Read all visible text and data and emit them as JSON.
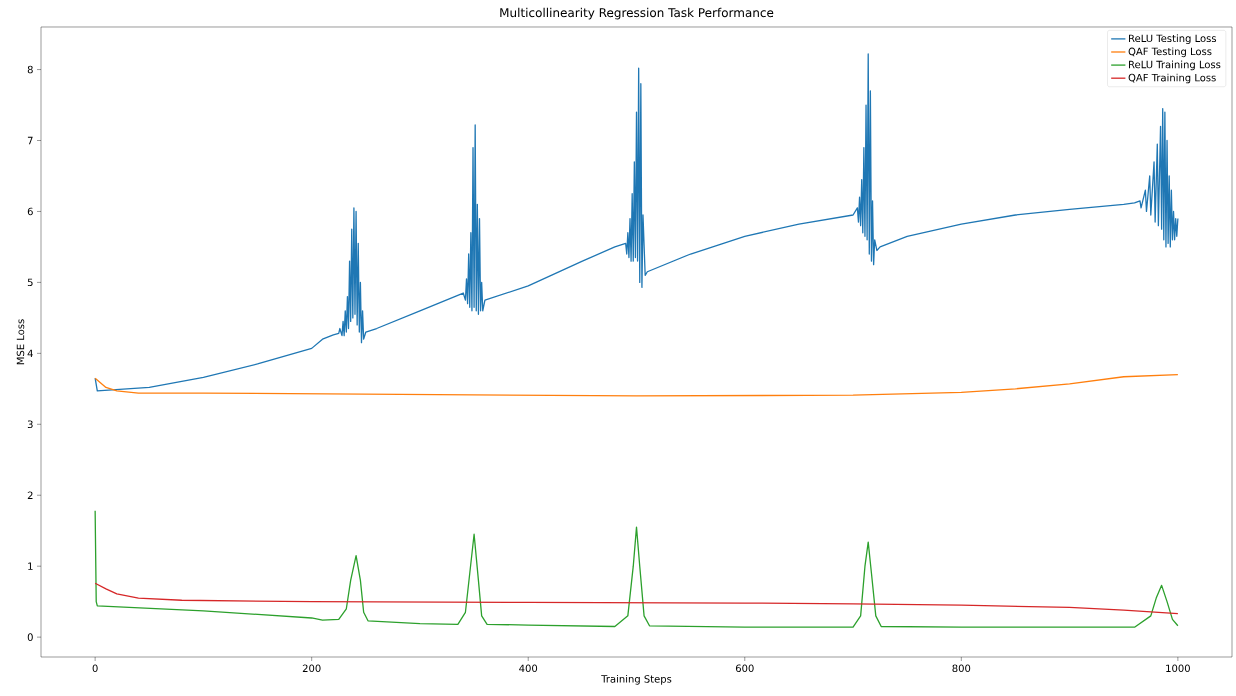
{
  "chart_data": {
    "type": "line",
    "title": "Multicollinearity Regression Task Performance",
    "xlabel": "Training Steps",
    "ylabel": "MSE Loss",
    "xlim": [
      -50,
      1050
    ],
    "ylim": [
      -0.28,
      8.6
    ],
    "xticks": [
      0,
      200,
      400,
      600,
      800,
      1000
    ],
    "yticks": [
      0,
      1,
      2,
      3,
      4,
      5,
      6,
      7,
      8
    ],
    "legend": "top right",
    "grid": false,
    "series": [
      {
        "name": "ReLU Testing Loss",
        "color": "#1f77b4",
        "x": [
          0,
          2,
          50,
          100,
          150,
          200,
          210,
          220,
          225,
          226,
          228,
          229,
          230,
          231,
          232,
          233,
          234,
          235,
          236,
          237,
          238,
          239,
          240,
          241,
          242,
          243,
          244,
          245,
          246,
          247,
          248,
          250,
          260,
          300,
          340,
          342,
          343,
          344,
          345,
          346,
          347,
          348,
          349,
          350,
          351,
          352,
          353,
          354,
          355,
          356,
          357,
          358,
          360,
          400,
          450,
          480,
          490,
          491,
          492,
          493,
          494,
          495,
          496,
          497,
          498,
          499,
          500,
          501,
          502,
          503,
          504,
          505,
          506,
          508,
          510,
          550,
          600,
          650,
          700,
          704,
          705,
          706,
          707,
          708,
          709,
          710,
          711,
          712,
          713,
          714,
          715,
          716,
          717,
          718,
          719,
          720,
          722,
          725,
          750,
          800,
          850,
          900,
          950,
          960,
          965,
          966,
          970,
          971,
          974,
          975,
          978,
          979,
          981,
          982,
          984,
          985,
          986,
          987,
          988,
          989,
          990,
          991,
          992,
          993,
          994,
          995,
          996,
          997,
          998,
          999,
          1000
        ],
        "values": [
          3.65,
          3.47,
          3.52,
          3.66,
          3.85,
          4.07,
          4.2,
          4.26,
          4.28,
          4.35,
          4.25,
          4.45,
          4.25,
          4.6,
          4.3,
          4.8,
          4.35,
          5.3,
          4.45,
          5.75,
          4.5,
          6.05,
          4.55,
          6.0,
          4.4,
          5.55,
          4.3,
          5.0,
          4.15,
          4.6,
          4.2,
          4.3,
          4.35,
          4.6,
          4.85,
          4.75,
          5.05,
          4.7,
          5.4,
          4.65,
          5.7,
          4.6,
          6.9,
          4.65,
          7.22,
          4.6,
          6.1,
          4.55,
          5.9,
          4.6,
          5.0,
          4.6,
          4.75,
          4.95,
          5.3,
          5.5,
          5.55,
          5.4,
          5.7,
          5.35,
          5.9,
          5.3,
          6.25,
          5.3,
          6.7,
          5.35,
          7.4,
          5.3,
          8.02,
          5.0,
          7.8,
          4.93,
          5.95,
          5.1,
          5.15,
          5.4,
          5.65,
          5.82,
          5.95,
          6.05,
          5.85,
          6.2,
          5.8,
          6.45,
          5.7,
          6.9,
          5.65,
          7.5,
          5.6,
          8.22,
          5.4,
          7.7,
          5.3,
          6.15,
          5.25,
          5.6,
          5.45,
          5.5,
          5.65,
          5.82,
          5.95,
          6.03,
          6.1,
          6.12,
          6.15,
          6.05,
          6.3,
          6.0,
          6.5,
          5.95,
          6.7,
          5.85,
          6.95,
          5.8,
          7.2,
          5.75,
          7.45,
          5.6,
          7.4,
          5.5,
          7.0,
          5.55,
          6.5,
          5.5,
          6.3,
          5.6,
          6.0,
          5.6,
          5.9,
          5.65,
          5.9
        ]
      },
      {
        "name": "QAF Testing Loss",
        "color": "#ff7f0e",
        "x": [
          0,
          10,
          20,
          40,
          100,
          300,
          500,
          700,
          800,
          850,
          900,
          950,
          1000
        ],
        "values": [
          3.65,
          3.52,
          3.47,
          3.44,
          3.44,
          3.42,
          3.4,
          3.41,
          3.45,
          3.5,
          3.57,
          3.67,
          3.7
        ]
      },
      {
        "name": "ReLU Training Loss",
        "color": "#2ca02c",
        "x": [
          0,
          1,
          2,
          100,
          200,
          210,
          225,
          232,
          236,
          241,
          245,
          248,
          252,
          300,
          335,
          342,
          346,
          350,
          354,
          357,
          362,
          400,
          480,
          492,
          497,
          500,
          503,
          507,
          512,
          600,
          700,
          707,
          711,
          714,
          717,
          721,
          726,
          800,
          960,
          975,
          980,
          985,
          990,
          995,
          1000
        ],
        "values": [
          1.78,
          0.5,
          0.44,
          0.37,
          0.27,
          0.24,
          0.25,
          0.4,
          0.8,
          1.15,
          0.8,
          0.35,
          0.23,
          0.19,
          0.18,
          0.35,
          0.9,
          1.45,
          0.8,
          0.3,
          0.18,
          0.17,
          0.15,
          0.3,
          1.0,
          1.55,
          1.0,
          0.3,
          0.16,
          0.14,
          0.14,
          0.3,
          1.0,
          1.34,
          0.9,
          0.3,
          0.15,
          0.14,
          0.14,
          0.3,
          0.55,
          0.73,
          0.5,
          0.25,
          0.16
        ]
      },
      {
        "name": "QAF Training Loss",
        "color": "#d62728",
        "x": [
          0,
          10,
          20,
          40,
          80,
          200,
          400,
          600,
          700,
          800,
          900,
          950,
          1000
        ],
        "values": [
          0.76,
          0.68,
          0.61,
          0.55,
          0.52,
          0.5,
          0.49,
          0.48,
          0.47,
          0.45,
          0.42,
          0.38,
          0.33
        ]
      }
    ]
  }
}
